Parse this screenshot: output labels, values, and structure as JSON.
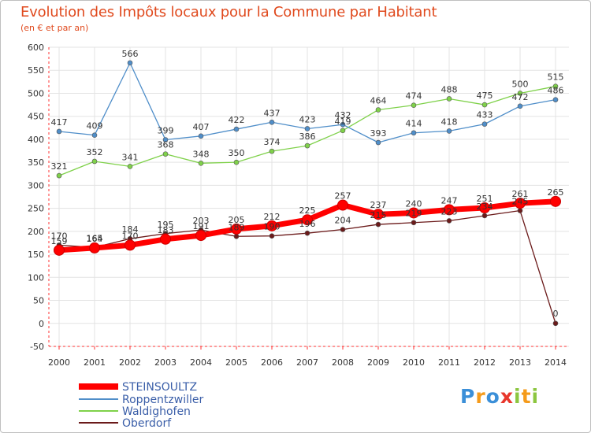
{
  "chart_data": {
    "type": "line",
    "title": "Evolution des Impôts locaux pour la Commune par Habitant",
    "subtitle": "(en € et par an)",
    "xlabel": "",
    "ylabel": "",
    "x": [
      "2000",
      "2001",
      "2002",
      "2003",
      "2004",
      "2005",
      "2006",
      "2007",
      "2008",
      "2009",
      "2010",
      "2011",
      "2012",
      "2013",
      "2014"
    ],
    "ylim": [
      -50,
      600
    ],
    "yticks": [
      -50,
      0,
      50,
      100,
      150,
      200,
      250,
      300,
      350,
      400,
      450,
      500,
      550,
      600
    ],
    "grid": true,
    "legend": "bottom-left",
    "series": [
      {
        "name": "STEINSOULTZ",
        "color": "#ff0000",
        "emphasis": true,
        "values": [
          159,
          164,
          170,
          183,
          191,
          205,
          212,
          225,
          257,
          237,
          240,
          247,
          251,
          261,
          265
        ]
      },
      {
        "name": "Roppentzwiller",
        "color": "#4f8ec9",
        "values": [
          417,
          409,
          566,
          399,
          407,
          422,
          437,
          423,
          432,
          393,
          414,
          418,
          433,
          472,
          486
        ]
      },
      {
        "name": "Waldighofen",
        "color": "#7fd14a",
        "values": [
          321,
          352,
          341,
          368,
          348,
          350,
          374,
          386,
          419,
          464,
          474,
          488,
          475,
          500,
          515
        ]
      },
      {
        "name": "Oberdorf",
        "color": "#6b1a1a",
        "values": [
          170,
          165,
          184,
          195,
          203,
          189,
          190,
          196,
          204,
          215,
          219,
          223,
          234,
          245,
          0
        ]
      }
    ]
  },
  "logo": {
    "letters": [
      "P",
      "r",
      "o",
      "x",
      "i",
      "t",
      "i"
    ],
    "colors": [
      "#3b8fd8",
      "#f59b1b",
      "#3b8fd8",
      "#e8372c",
      "#8cc63f",
      "#f59b1b",
      "#8cc63f"
    ]
  }
}
